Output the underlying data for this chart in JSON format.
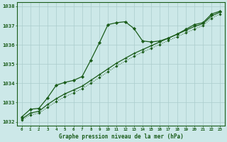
{
  "title": "Graphe pression niveau de la mer (hPa)",
  "bg_color": "#cce8e8",
  "grid_color": "#aacccc",
  "line_color": "#1a5c1a",
  "x_ticks": [
    0,
    1,
    2,
    3,
    4,
    5,
    6,
    7,
    8,
    9,
    10,
    11,
    12,
    13,
    14,
    15,
    16,
    17,
    18,
    19,
    20,
    21,
    22,
    23
  ],
  "ylim": [
    1031.8,
    1038.2
  ],
  "yticks": [
    1032,
    1033,
    1034,
    1035,
    1036,
    1037,
    1038
  ],
  "line_peak": {
    "x": [
      0,
      1,
      2,
      3,
      4,
      5,
      6,
      7,
      8,
      9,
      10,
      11,
      12,
      13,
      14,
      15,
      16,
      17,
      18,
      19,
      20,
      21,
      22,
      23
    ],
    "y": [
      1032.25,
      1032.65,
      1032.7,
      1033.25,
      1033.9,
      1034.05,
      1034.15,
      1034.35,
      1035.2,
      1036.1,
      1037.05,
      1037.15,
      1037.2,
      1036.85,
      1036.2,
      1036.15,
      1036.2,
      1036.35,
      1036.55,
      1036.8,
      1037.05,
      1037.15,
      1037.6,
      1037.75
    ]
  },
  "line_linear1": {
    "x": [
      0,
      1,
      2,
      3,
      4,
      5,
      6,
      7,
      8,
      9,
      10,
      11,
      12,
      13,
      14,
      15,
      16,
      17,
      18,
      19,
      20,
      21,
      22,
      23
    ],
    "y": [
      1032.15,
      1032.45,
      1032.55,
      1032.9,
      1033.2,
      1033.45,
      1033.65,
      1033.85,
      1034.15,
      1034.45,
      1034.75,
      1035.05,
      1035.3,
      1035.55,
      1035.75,
      1035.95,
      1036.15,
      1036.35,
      1036.55,
      1036.75,
      1036.95,
      1037.1,
      1037.5,
      1037.7
    ]
  },
  "line_linear2": {
    "x": [
      0,
      1,
      2,
      3,
      4,
      5,
      6,
      7,
      8,
      9,
      10,
      11,
      12,
      13,
      14,
      15,
      16,
      17,
      18,
      19,
      20,
      21,
      22,
      23
    ],
    "y": [
      1032.1,
      1032.35,
      1032.45,
      1032.75,
      1033.05,
      1033.3,
      1033.5,
      1033.72,
      1034.0,
      1034.3,
      1034.6,
      1034.9,
      1035.15,
      1035.4,
      1035.62,
      1035.82,
      1036.02,
      1036.22,
      1036.42,
      1036.62,
      1036.82,
      1037.0,
      1037.38,
      1037.6
    ]
  }
}
